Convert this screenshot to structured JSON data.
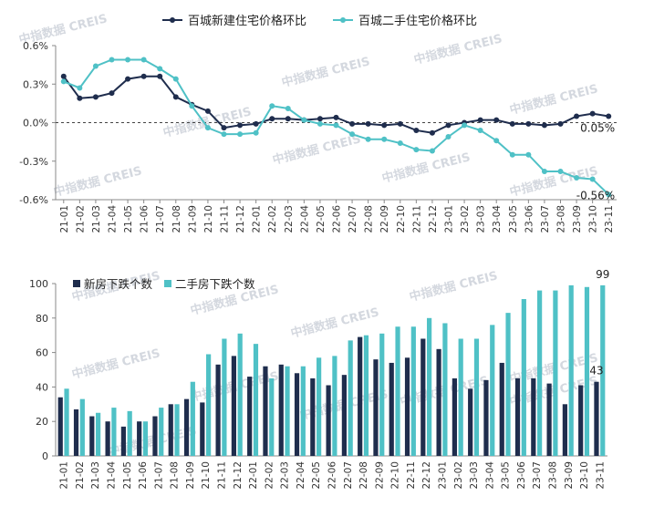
{
  "watermark": "中指数据 CREIS",
  "chart_data": [
    {
      "type": "line",
      "categories": [
        "21-01",
        "21-02",
        "21-03",
        "21-04",
        "21-05",
        "21-06",
        "21-07",
        "21-08",
        "21-09",
        "21-10",
        "21-11",
        "21-12",
        "22-01",
        "22-02",
        "22-03",
        "22-04",
        "22-05",
        "22-06",
        "22-07",
        "22-08",
        "22-09",
        "22-10",
        "22-11",
        "22-12",
        "23-01",
        "23-02",
        "23-03",
        "23-04",
        "23-05",
        "23-06",
        "23-07",
        "23-08",
        "23-09",
        "23-10",
        "23-11"
      ],
      "series": [
        {
          "name": "百城新建住宅价格环比",
          "color": "#1f2d4d",
          "values": [
            0.36,
            0.19,
            0.2,
            0.23,
            0.34,
            0.36,
            0.36,
            0.2,
            0.14,
            0.09,
            -0.04,
            -0.02,
            -0.01,
            0.03,
            0.03,
            0.02,
            0.03,
            0.04,
            -0.01,
            -0.01,
            -0.02,
            -0.01,
            -0.06,
            -0.08,
            -0.02,
            0.0,
            0.02,
            0.02,
            -0.01,
            -0.01,
            -0.02,
            -0.01,
            0.05,
            0.07,
            0.05
          ]
        },
        {
          "name": "百城二手住宅价格环比",
          "color": "#4fc1c6",
          "values": [
            0.32,
            0.27,
            0.44,
            0.49,
            0.49,
            0.49,
            0.42,
            0.34,
            0.13,
            -0.04,
            -0.09,
            -0.09,
            -0.08,
            0.13,
            0.11,
            0.02,
            -0.01,
            -0.02,
            -0.09,
            -0.13,
            -0.13,
            -0.16,
            -0.21,
            -0.22,
            -0.11,
            -0.02,
            -0.06,
            -0.14,
            -0.25,
            -0.25,
            -0.38,
            -0.38,
            -0.43,
            -0.44,
            -0.56
          ]
        }
      ],
      "ylim": [
        -0.6,
        0.6
      ],
      "yticks": [
        0.6,
        0.3,
        0.0,
        -0.3,
        -0.6
      ],
      "ytick_labels": [
        "0.6%",
        "0.3%",
        "0.0%",
        "-0.3%",
        "-0.6%"
      ],
      "annotations": [
        {
          "series": 0,
          "index": 34,
          "text": "0.05%"
        },
        {
          "series": 1,
          "index": 34,
          "text": "-0.56%"
        }
      ],
      "legend": "top",
      "reference_line": 0
    },
    {
      "type": "bar",
      "categories": [
        "21-01",
        "21-02",
        "21-03",
        "21-04",
        "21-05",
        "21-06",
        "21-07",
        "21-08",
        "21-09",
        "21-10",
        "21-11",
        "21-12",
        "22-01",
        "22-02",
        "22-03",
        "22-04",
        "22-05",
        "22-06",
        "22-07",
        "22-08",
        "22-09",
        "22-10",
        "22-11",
        "22-12",
        "23-01",
        "23-02",
        "23-03",
        "23-04",
        "23-05",
        "23-06",
        "23-07",
        "23-08",
        "23-09",
        "23-10",
        "23-11"
      ],
      "series": [
        {
          "name": "新房下跌个数",
          "color": "#1f2d4d",
          "values": [
            34,
            27,
            23,
            20,
            17,
            20,
            23,
            30,
            33,
            31,
            53,
            58,
            46,
            52,
            53,
            48,
            45,
            41,
            47,
            69,
            56,
            54,
            57,
            68,
            62,
            45,
            39,
            44,
            54,
            45,
            45,
            42,
            30,
            41,
            43
          ]
        },
        {
          "name": "二手房下跌个数",
          "color": "#4fc1c6",
          "values": [
            39,
            33,
            25,
            28,
            26,
            20,
            28,
            30,
            43,
            59,
            68,
            71,
            65,
            45,
            52,
            52,
            57,
            58,
            67,
            70,
            71,
            75,
            75,
            80,
            77,
            68,
            68,
            76,
            83,
            91,
            96,
            96,
            99,
            98,
            99
          ]
        }
      ],
      "ylim": [
        0,
        100
      ],
      "yticks": [
        100,
        80,
        60,
        40,
        20,
        0
      ],
      "ytick_labels": [
        "100",
        "80",
        "60",
        "40",
        "20",
        "0"
      ],
      "annotations": [
        {
          "series": 1,
          "index": 34,
          "text": "99"
        },
        {
          "series": 0,
          "index": 34,
          "text": "43"
        }
      ],
      "legend": "top-left"
    }
  ]
}
